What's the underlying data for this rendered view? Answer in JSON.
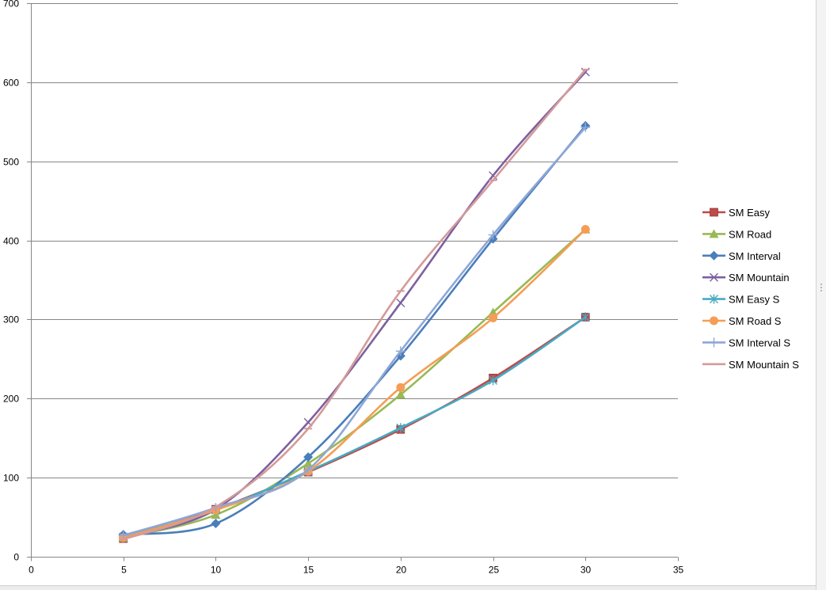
{
  "chart_data": {
    "type": "line",
    "title": "",
    "xlabel": "",
    "ylabel": "",
    "x": [
      5,
      10,
      15,
      20,
      25,
      30
    ],
    "xlim": [
      0,
      35
    ],
    "ylim": [
      0,
      700
    ],
    "xticks": [
      0,
      5,
      10,
      15,
      20,
      25,
      30,
      35
    ],
    "yticks": [
      0,
      100,
      200,
      300,
      400,
      500,
      600,
      700
    ],
    "grid": "horizontal",
    "legend_position": "right",
    "smooth": true,
    "series": [
      {
        "name": "SM Easy",
        "color": "#be4b48",
        "marker": "square",
        "values": [
          23,
          60,
          107,
          161,
          226,
          303
        ]
      },
      {
        "name": "SM Road",
        "color": "#98b954",
        "marker": "triangle",
        "values": [
          24,
          53,
          118,
          205,
          309,
          414
        ]
      },
      {
        "name": "SM Interval",
        "color": "#4a7ebb",
        "marker": "diamond",
        "values": [
          28,
          42,
          126,
          254,
          402,
          545
        ]
      },
      {
        "name": "SM Mountain",
        "color": "#7d60a0",
        "marker": "x",
        "values": [
          25,
          60,
          170,
          321,
          482,
          613
        ]
      },
      {
        "name": "SM Easy S",
        "color": "#46aac5",
        "marker": "asterisk",
        "values": [
          25,
          59,
          108,
          163,
          223,
          303
        ]
      },
      {
        "name": "SM Road S",
        "color": "#f59d56",
        "marker": "circle",
        "values": [
          24,
          59,
          108,
          214,
          302,
          414
        ]
      },
      {
        "name": "SM Interval S",
        "color": "#8ea7d5",
        "marker": "plus",
        "values": [
          27,
          62,
          110,
          260,
          407,
          543
        ]
      },
      {
        "name": "SM Mountain S",
        "color": "#d49a9a",
        "marker": "dash",
        "values": [
          22,
          63,
          162,
          336,
          476,
          616
        ]
      }
    ]
  }
}
